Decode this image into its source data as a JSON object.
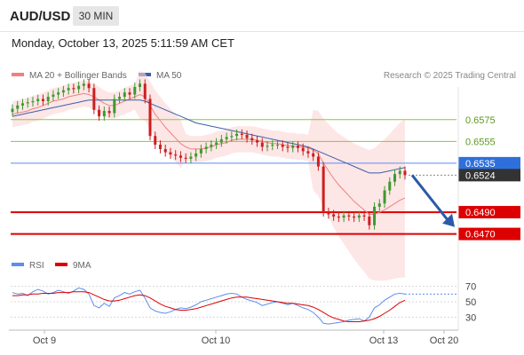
{
  "header": {
    "symbol": "AUD/USD",
    "timeframe": "30 MIN",
    "datetime": "Monday, October 13, 2025 5:11:59 AM CET"
  },
  "legend": {
    "bollinger_label": "MA 20 + Bollinger Bands",
    "ma50_label": "MA 50",
    "credit": "Research © 2025 Trading Central"
  },
  "colors": {
    "bollinger": "#f08080",
    "ma50": "#3a5fa8",
    "support": "#dd0000",
    "resistance": "#8dc63f",
    "pivot": "#5b8def",
    "current": "#333333",
    "arrow": "#2b5aa8",
    "candle_up": "#3c9a2e",
    "candle_down": "#cc1f1f",
    "rsi": "#5b8def",
    "rsi_ma": "#dd0000"
  },
  "rsi_legend": {
    "rsi_label": "RSI",
    "ma_label": "9MA"
  },
  "chart_data": [
    {
      "type": "candlestick",
      "title": "AUD/USD 30 MIN",
      "y_range": [
        0.6455,
        0.6605
      ],
      "x_ticks": [
        "Oct 9",
        "Oct 10",
        "Oct 13",
        "Oct 20"
      ],
      "levels": [
        {
          "value": 0.6575,
          "label": "0.6575",
          "kind": "resistance"
        },
        {
          "value": 0.6555,
          "label": "0.6555",
          "kind": "resistance"
        },
        {
          "value": 0.6535,
          "label": "0.6535",
          "kind": "pivot"
        },
        {
          "value": 0.6524,
          "label": "0.6524",
          "kind": "current"
        },
        {
          "value": 0.649,
          "label": "0.6490",
          "kind": "support"
        },
        {
          "value": 0.647,
          "label": "0.6470",
          "kind": "support"
        }
      ],
      "close_series": [
        0.6585,
        0.6588,
        0.659,
        0.6591,
        0.6592,
        0.6594,
        0.6592,
        0.6596,
        0.6598,
        0.66,
        0.6602,
        0.6604,
        0.6603,
        0.6606,
        0.6608,
        0.6604,
        0.6584,
        0.6578,
        0.6583,
        0.6581,
        0.6594,
        0.6596,
        0.66,
        0.6598,
        0.6605,
        0.6608,
        0.6594,
        0.656,
        0.6552,
        0.6548,
        0.6545,
        0.6543,
        0.6542,
        0.654,
        0.6539,
        0.6541,
        0.6544,
        0.6548,
        0.655,
        0.6552,
        0.6554,
        0.6557,
        0.6559,
        0.656,
        0.6562,
        0.6561,
        0.6558,
        0.6556,
        0.6554,
        0.655,
        0.6551,
        0.6552,
        0.6552,
        0.655,
        0.6549,
        0.6551,
        0.6549,
        0.6546,
        0.6544,
        0.6541,
        0.6532,
        0.649,
        0.6488,
        0.6486,
        0.6485,
        0.6487,
        0.6486,
        0.6485,
        0.6487,
        0.6486,
        0.6478,
        0.6495,
        0.6498,
        0.651,
        0.6518,
        0.6525,
        0.6528,
        0.6524
      ],
      "ma20_series": [
        0.658,
        0.6581,
        0.6582,
        0.6583,
        0.6585,
        0.6586,
        0.6588,
        0.659,
        0.6592,
        0.6593,
        0.6594,
        0.6596,
        0.6597,
        0.6598,
        0.6599,
        0.6598,
        0.6596,
        0.6593,
        0.659,
        0.6588,
        0.6588,
        0.659,
        0.6592,
        0.6594,
        0.6596,
        0.6598,
        0.6596,
        0.6588,
        0.658,
        0.6574,
        0.6568,
        0.6563,
        0.6558,
        0.6553,
        0.655,
        0.6548,
        0.6548,
        0.6548,
        0.6549,
        0.655,
        0.6552,
        0.6553,
        0.6554,
        0.6556,
        0.6557,
        0.6557,
        0.6557,
        0.6557,
        0.6556,
        0.6555,
        0.6554,
        0.6553,
        0.6553,
        0.6552,
        0.6551,
        0.6551,
        0.655,
        0.655,
        0.6549,
        0.6547,
        0.6544,
        0.6535,
        0.6528,
        0.6521,
        0.6515,
        0.651,
        0.6505,
        0.65,
        0.6496,
        0.6492,
        0.6488,
        0.6488,
        0.649,
        0.6492,
        0.6495,
        0.6498,
        0.6501,
        0.6503
      ],
      "ma50_series": [
        0.6578,
        0.6579,
        0.658,
        0.6581,
        0.6582,
        0.6583,
        0.6584,
        0.6585,
        0.6586,
        0.6587,
        0.6588,
        0.6589,
        0.659,
        0.6591,
        0.6592,
        0.6593,
        0.6593,
        0.6593,
        0.6593,
        0.6593,
        0.6593,
        0.6593,
        0.6593,
        0.6593,
        0.6593,
        0.6593,
        0.6592,
        0.659,
        0.6588,
        0.6586,
        0.6584,
        0.6582,
        0.658,
        0.6578,
        0.6576,
        0.6574,
        0.6572,
        0.6571,
        0.657,
        0.6569,
        0.6568,
        0.6567,
        0.6566,
        0.6565,
        0.6564,
        0.6563,
        0.6562,
        0.6561,
        0.656,
        0.6559,
        0.6558,
        0.6557,
        0.6556,
        0.6555,
        0.6554,
        0.6553,
        0.6552,
        0.6551,
        0.655,
        0.6548,
        0.6546,
        0.6544,
        0.6542,
        0.654,
        0.6538,
        0.6536,
        0.6534,
        0.6532,
        0.653,
        0.6528,
        0.6526,
        0.6526,
        0.6526,
        0.6527,
        0.6528,
        0.6529,
        0.653,
        0.6531
      ]
    },
    {
      "type": "line",
      "title": "RSI",
      "y_range": [
        20,
        80
      ],
      "y_ticks": [
        70,
        50,
        30
      ],
      "series": [
        {
          "name": "RSI",
          "values": [
            62,
            60,
            61,
            58,
            63,
            66,
            64,
            60,
            62,
            65,
            63,
            61,
            64,
            68,
            66,
            60,
            45,
            42,
            48,
            44,
            55,
            58,
            62,
            60,
            63,
            65,
            55,
            42,
            38,
            36,
            35,
            37,
            40,
            42,
            41,
            43,
            46,
            50,
            52,
            54,
            56,
            58,
            60,
            61,
            60,
            56,
            53,
            51,
            49,
            45,
            47,
            49,
            50,
            48,
            46,
            48,
            45,
            42,
            40,
            36,
            30,
            22,
            21,
            22,
            23,
            24,
            26,
            27,
            28,
            25,
            30,
            42,
            46,
            52,
            56,
            60,
            61,
            60
          ]
        },
        {
          "name": "9MA",
          "values": [
            58,
            58,
            59,
            59,
            60,
            60,
            61,
            61,
            61,
            62,
            62,
            62,
            63,
            63,
            63,
            62,
            59,
            56,
            53,
            51,
            51,
            52,
            54,
            56,
            58,
            59,
            58,
            55,
            51,
            47,
            44,
            42,
            40,
            39,
            39,
            40,
            41,
            43,
            45,
            47,
            49,
            51,
            53,
            55,
            56,
            56,
            56,
            55,
            54,
            53,
            52,
            51,
            50,
            49,
            48,
            48,
            47,
            46,
            45,
            43,
            40,
            36,
            32,
            29,
            27,
            25,
            24,
            24,
            24,
            25,
            26,
            28,
            31,
            35,
            39,
            44,
            49,
            52
          ]
        }
      ]
    }
  ]
}
